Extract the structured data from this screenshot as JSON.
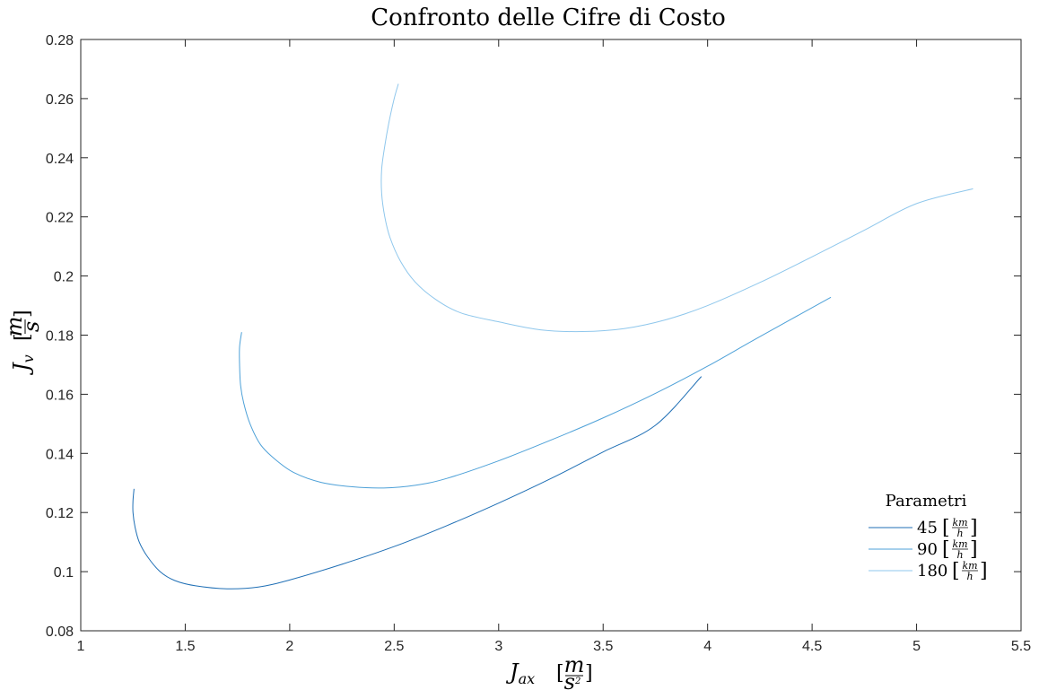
{
  "chart_data": {
    "type": "line",
    "title": "Confronto delle Cifre di Costo",
    "xlabel": {
      "symbol": "J",
      "subscript": "ax",
      "unit_num": "m",
      "unit_den": "s",
      "unit_den_exp": "2"
    },
    "ylabel": {
      "symbol": "J",
      "subscript": "v",
      "unit_num": "m",
      "unit_den": "s"
    },
    "xlim": [
      1,
      5.5
    ],
    "ylim": [
      0.08,
      0.28
    ],
    "xticks": [
      1,
      1.5,
      2,
      2.5,
      3,
      3.5,
      4,
      4.5,
      5,
      5.5
    ],
    "xtick_labels": [
      "1",
      "1.5",
      "2",
      "2.5",
      "3",
      "3.5",
      "4",
      "4.5",
      "5",
      "5.5"
    ],
    "yticks": [
      0.08,
      0.1,
      0.12,
      0.14,
      0.16,
      0.18,
      0.2,
      0.22,
      0.24,
      0.26,
      0.28
    ],
    "ytick_labels": [
      "0.08",
      "0.1",
      "0.12",
      "0.14",
      "0.16",
      "0.18",
      "0.2",
      "0.22",
      "0.24",
      "0.26",
      "0.28"
    ],
    "grid": false,
    "legend": {
      "title": "Parametri",
      "placement": "lower-right"
    },
    "series": [
      {
        "name": "45",
        "unit_num": "km",
        "unit_den": "h",
        "color": "#1f6fb5",
        "points": [
          [
            1.255,
            0.128
          ],
          [
            1.25,
            0.124
          ],
          [
            1.25,
            0.12
          ],
          [
            1.26,
            0.115
          ],
          [
            1.28,
            0.11
          ],
          [
            1.32,
            0.105
          ],
          [
            1.38,
            0.1
          ],
          [
            1.45,
            0.097
          ],
          [
            1.55,
            0.0952
          ],
          [
            1.7,
            0.0942
          ],
          [
            1.85,
            0.0948
          ],
          [
            2.0,
            0.0972
          ],
          [
            2.25,
            0.1025
          ],
          [
            2.5,
            0.1085
          ],
          [
            2.75,
            0.1155
          ],
          [
            3.0,
            0.1232
          ],
          [
            3.25,
            0.1315
          ],
          [
            3.5,
            0.1405
          ],
          [
            3.75,
            0.1495
          ],
          [
            3.97,
            0.166
          ]
        ]
      },
      {
        "name": "90",
        "unit_num": "km",
        "unit_den": "h",
        "color": "#4ea1d8",
        "points": [
          [
            1.77,
            0.181
          ],
          [
            1.76,
            0.176
          ],
          [
            1.76,
            0.17
          ],
          [
            1.765,
            0.163
          ],
          [
            1.78,
            0.157
          ],
          [
            1.81,
            0.15
          ],
          [
            1.86,
            0.143
          ],
          [
            1.93,
            0.138
          ],
          [
            2.02,
            0.1335
          ],
          [
            2.15,
            0.1302
          ],
          [
            2.3,
            0.1287
          ],
          [
            2.45,
            0.1283
          ],
          [
            2.6,
            0.1292
          ],
          [
            2.75,
            0.1315
          ],
          [
            3.0,
            0.1375
          ],
          [
            3.25,
            0.1445
          ],
          [
            3.5,
            0.152
          ],
          [
            3.75,
            0.1603
          ],
          [
            4.0,
            0.1695
          ],
          [
            4.25,
            0.1795
          ],
          [
            4.59,
            0.1928
          ]
        ]
      },
      {
        "name": "180",
        "unit_num": "km",
        "unit_den": "h",
        "color": "#8fc7ec",
        "points": [
          [
            2.52,
            0.265
          ],
          [
            2.5,
            0.26
          ],
          [
            2.475,
            0.252
          ],
          [
            2.455,
            0.244
          ],
          [
            2.44,
            0.236
          ],
          [
            2.44,
            0.228
          ],
          [
            2.455,
            0.22
          ],
          [
            2.48,
            0.213
          ],
          [
            2.53,
            0.205
          ],
          [
            2.6,
            0.198
          ],
          [
            2.7,
            0.192
          ],
          [
            2.82,
            0.1875
          ],
          [
            3.0,
            0.1845
          ],
          [
            3.2,
            0.1818
          ],
          [
            3.4,
            0.1812
          ],
          [
            3.6,
            0.1822
          ],
          [
            3.8,
            0.1852
          ],
          [
            4.0,
            0.19
          ],
          [
            4.25,
            0.1978
          ],
          [
            4.5,
            0.2065
          ],
          [
            4.75,
            0.2155
          ],
          [
            5.0,
            0.2245
          ],
          [
            5.27,
            0.2295
          ]
        ]
      }
    ]
  }
}
